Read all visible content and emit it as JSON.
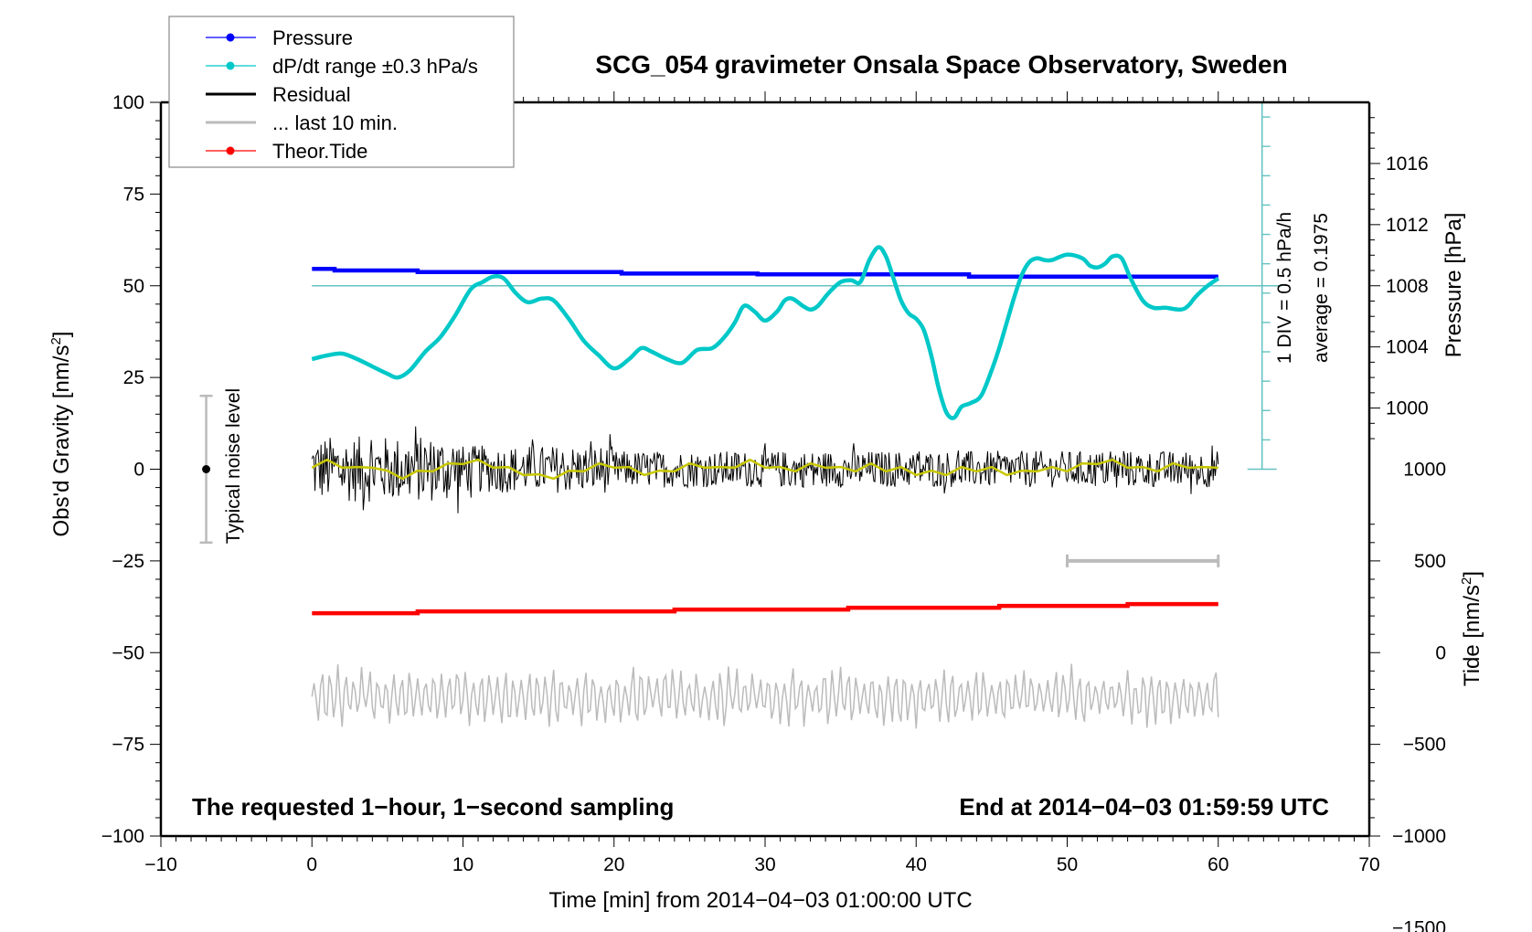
{
  "chart_data": {
    "type": "line",
    "title": "SCG_054 gravimeter Onsala Space Observatory, Sweden",
    "xlabel": "Time [min] from 2014−04−03 01:00:00 UTC",
    "ylabel_left": "Obs'd Gravity [nm/s",
    "ylabel_left_sup": "2",
    "ylabel_left_end": "]",
    "ylabel_right_pressure": "Pressure [hPa]",
    "ylabel_right_tide": "Tide [nm/s",
    "ylabel_right_tide_sup": "2",
    "ylabel_right_tide_end": "]",
    "xlim": [
      -10,
      70
    ],
    "ylim": [
      -100,
      100
    ],
    "x_ticks": [
      {
        "v": -10,
        "label": "−10"
      },
      {
        "v": 0,
        "label": "0"
      },
      {
        "v": 10,
        "label": "10"
      },
      {
        "v": 20,
        "label": "20"
      },
      {
        "v": 30,
        "label": "30"
      },
      {
        "v": 40,
        "label": "40"
      },
      {
        "v": 50,
        "label": "50"
      },
      {
        "v": 60,
        "label": "60"
      },
      {
        "v": 70,
        "label": "70"
      }
    ],
    "y_ticks": [
      {
        "v": 100,
        "label": "100"
      },
      {
        "v": 75,
        "label": "75"
      },
      {
        "v": 50,
        "label": "50"
      },
      {
        "v": 25,
        "label": "25"
      },
      {
        "v": 0,
        "label": "0"
      },
      {
        "v": -25,
        "label": "−25"
      },
      {
        "v": -50,
        "label": "−50"
      },
      {
        "v": -75,
        "label": "−75"
      },
      {
        "v": -100,
        "label": "−100"
      }
    ],
    "pressure_axis": {
      "ticks": [
        {
          "v": 1016,
          "label": "1016"
        },
        {
          "v": 1012,
          "label": "1012"
        },
        {
          "v": 1008,
          "label": "1008"
        },
        {
          "v": 1004,
          "label": "1004"
        },
        {
          "v": 1000,
          "label": "1000"
        }
      ],
      "map_g_per_unit": 4.1667,
      "ref_value": 1008,
      "ref_g": 50
    },
    "tide_axis": {
      "ticks": [
        {
          "v": 1000,
          "label": "1000"
        },
        {
          "v": 500,
          "label": "500"
        },
        {
          "v": 0,
          "label": "0"
        },
        {
          "v": -500,
          "label": "−500"
        },
        {
          "v": -1000,
          "label": "−1000"
        },
        {
          "v": -1500,
          "label": "−1500"
        }
      ],
      "map_g_per_unit": 0.05,
      "ref_value": 0,
      "ref_g": -50
    },
    "legend": {
      "placement": "top-left",
      "entries": [
        {
          "label": "Pressure",
          "color": "#0000ff",
          "marker": true
        },
        {
          "label": "dP/dt range ±0.3 hPa/s",
          "color": "#00c8c8",
          "marker": true
        },
        {
          "label": "Residual",
          "color": "#000000",
          "marker": false
        },
        {
          "label": "... last 10 min.",
          "color": "#bbbbbb",
          "marker": false
        },
        {
          "label": "Theor.Tide",
          "color": "#ff0000",
          "marker": true
        }
      ]
    },
    "series": [
      {
        "name": "Pressure",
        "color": "#0000ff",
        "unit": "hPa",
        "x": [
          0,
          1.5,
          1.5,
          7,
          7,
          20.5,
          20.5,
          29.5,
          29.5,
          43.5,
          43.5,
          60
        ],
        "values": [
          1009.1,
          1009.1,
          1009.0,
          1009.0,
          1008.9,
          1008.9,
          1008.8,
          1008.8,
          1008.75,
          1008.75,
          1008.6,
          1008.6
        ]
      },
      {
        "name": "dP/dt",
        "color": "#00c8c8",
        "unit": "gravity-axis units",
        "x": [
          0,
          1,
          2,
          3,
          4,
          5,
          5.7,
          6.5,
          7.5,
          8.5,
          9.5,
          10.5,
          11.3,
          12,
          12.7,
          13.5,
          14.3,
          15.2,
          16,
          17,
          18,
          19,
          20,
          21,
          21.8,
          22.5,
          23.5,
          24.5,
          25.5,
          26.5,
          27.3,
          28,
          28.6,
          29.3,
          30,
          30.8,
          31.3,
          31.8,
          32.5,
          33,
          33.5,
          34.2,
          35,
          35.7,
          36.3,
          36.9,
          37.5,
          38,
          38.5,
          39,
          39.5,
          40,
          40.5,
          41,
          41.5,
          42,
          42.5,
          43,
          43.6,
          44.3,
          45,
          45.5,
          46,
          46.5,
          47,
          47.5,
          48,
          48.5,
          49,
          50,
          51,
          51.5,
          52,
          52.5,
          53,
          53.6,
          54.2,
          55,
          55.7,
          56.5,
          57.5,
          58,
          58.5,
          59.3,
          60
        ],
        "values": [
          30,
          31,
          31.5,
          30,
          28,
          26,
          25,
          27,
          32,
          36,
          42,
          49,
          51,
          52.5,
          52,
          48,
          45.5,
          46.5,
          46,
          41,
          35,
          31,
          27.5,
          30,
          33,
          32,
          30,
          29,
          32.5,
          33,
          36,
          40,
          44.5,
          43,
          40.5,
          43,
          46,
          46.5,
          44.5,
          43.5,
          44.5,
          48,
          51,
          51.5,
          51,
          57,
          60.5,
          58,
          52,
          46,
          42.5,
          41,
          38,
          31,
          22,
          15.5,
          14,
          17,
          18,
          20,
          27,
          33,
          40,
          47,
          53,
          56.5,
          57.5,
          57,
          57,
          58.5,
          57.5,
          55.5,
          55,
          56,
          58,
          57.5,
          52,
          46,
          44,
          44,
          43.5,
          44.5,
          47,
          50,
          52
        ]
      },
      {
        "name": "Residual",
        "color": "#000000",
        "unit": "nm/s2",
        "range": [
          -12,
          15
        ],
        "x_range": [
          0,
          60
        ]
      },
      {
        "name": "Residual (smoothed)",
        "color": "#c8c800",
        "unit": "nm/s2",
        "x": [
          0,
          1,
          2,
          3,
          4,
          5,
          6,
          7,
          8,
          9,
          10,
          11,
          12,
          13,
          14,
          15,
          16,
          17,
          18,
          19,
          20,
          21,
          22,
          23,
          24,
          25,
          26,
          27,
          28,
          29,
          30,
          31,
          32,
          33,
          34,
          35,
          36,
          37,
          38,
          39,
          40,
          41,
          42,
          43,
          44,
          45,
          46,
          47,
          48,
          49,
          50,
          51,
          52,
          53,
          54,
          55,
          56,
          57,
          58,
          59,
          60
        ],
        "values": [
          1,
          2,
          1,
          0,
          1,
          -1,
          -2,
          -1,
          0,
          1,
          2,
          2,
          1,
          0,
          -1,
          -2,
          -2,
          -1,
          0,
          1,
          1,
          0,
          -1,
          -1,
          0,
          1,
          1,
          0,
          1,
          2,
          1,
          0,
          0,
          1,
          1,
          0,
          0,
          1,
          0,
          0,
          -1,
          -1,
          -1,
          0,
          0,
          0,
          -1,
          -1,
          0,
          0,
          0,
          1,
          2,
          2,
          1,
          0,
          0,
          1,
          1,
          0,
          1
        ]
      },
      {
        "name": "Theor.Tide",
        "color": "#ff0000",
        "unit": "nm/s2",
        "x": [
          0,
          7,
          7,
          24,
          24,
          35.5,
          35.5,
          45.5,
          45.5,
          54,
          54,
          60
        ],
        "values": [
          215,
          215,
          225,
          225,
          235,
          235,
          245,
          245,
          255,
          255,
          265,
          265
        ]
      },
      {
        "name": "... last 10 min.",
        "color": "#bbbbbb",
        "unit": "nm/s2",
        "x_range": [
          0,
          60
        ],
        "center": -62,
        "amplitude": 9,
        "time_window_min": [
          50,
          60
        ]
      }
    ],
    "annotations": {
      "left_note": "The requested 1−hour, 1−second sampling",
      "right_note": "End at 2014−04−03 01:59:59 UTC",
      "noise_label": "Typical noise level",
      "noise_range": [
        -20,
        20
      ],
      "div_label": "1 DIV = 0.5 hPa/h",
      "average_label": "average = 0.1975",
      "dpdt_reference_g": 50
    },
    "colors": {
      "pressure": "#0000ff",
      "dpdt": "#00c8c8",
      "dpdt_axis": "#66c2c2",
      "residual": "#000000",
      "smooth": "#c8c800",
      "last10": "#bbbbbb",
      "tide": "#ff0000",
      "noise_bar": "#bbbbbb"
    }
  }
}
